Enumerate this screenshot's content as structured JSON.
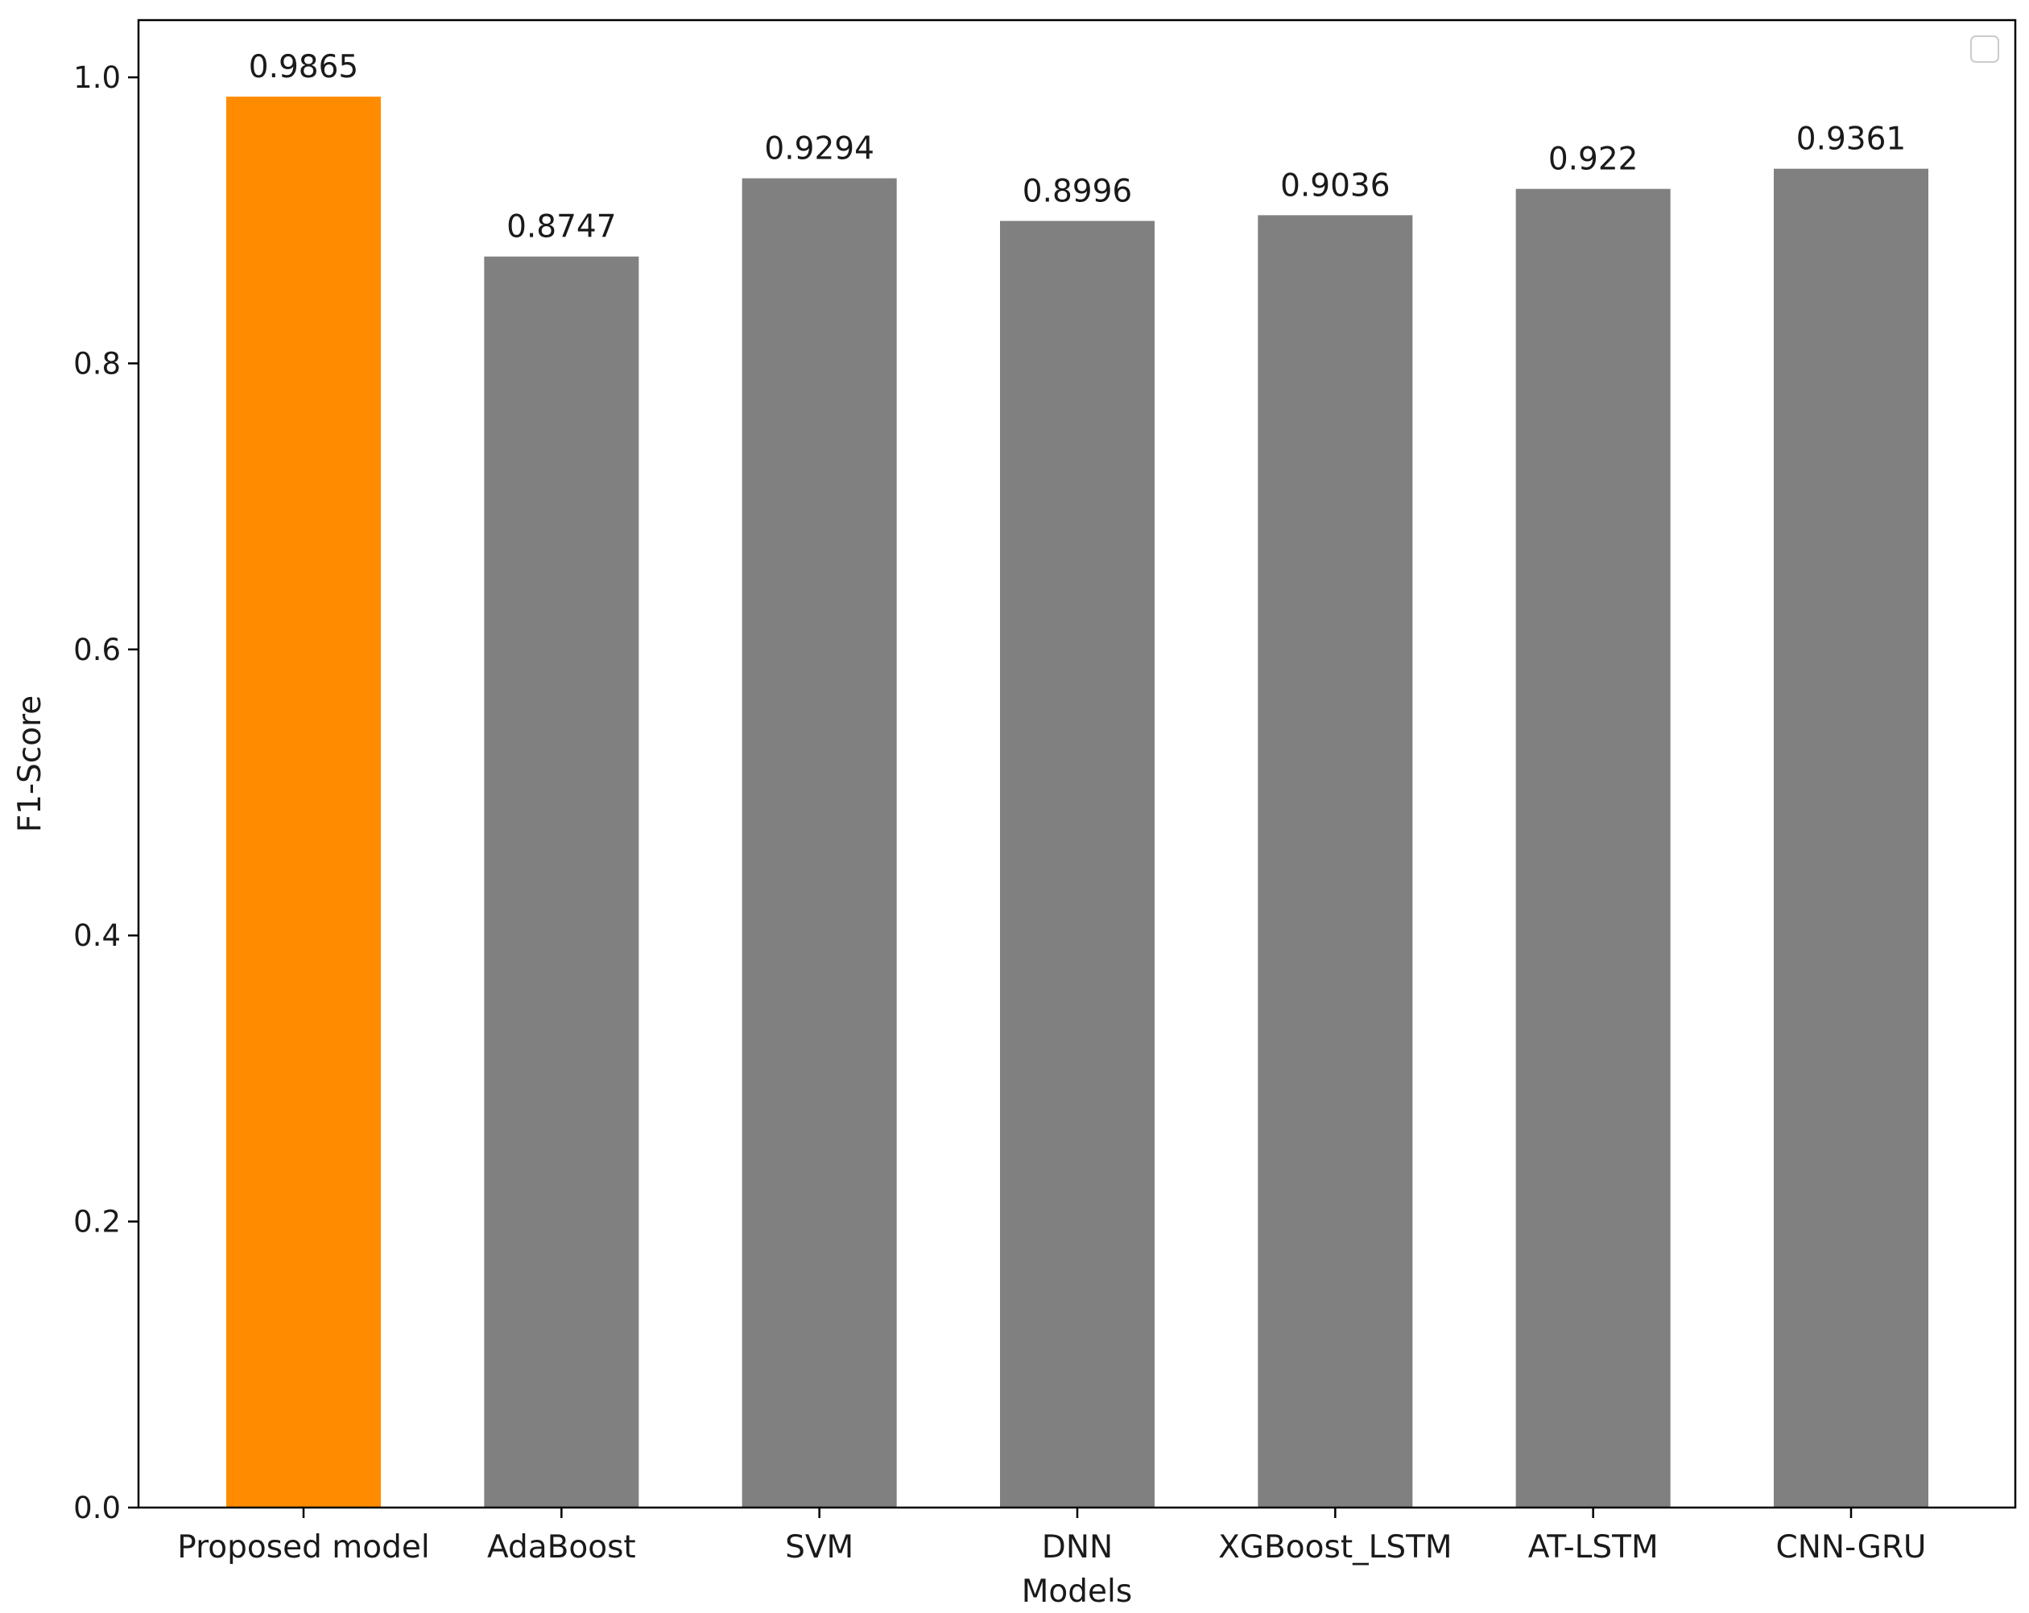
{
  "chart_data": {
    "type": "bar",
    "title": "",
    "xlabel": "Models",
    "ylabel": "F1-Score",
    "categories": [
      "Proposed model",
      "AdaBoost",
      "SVM",
      "DNN",
      "XGBoost_LSTM",
      "AT-LSTM",
      "CNN-GRU"
    ],
    "values": [
      0.9865,
      0.8747,
      0.9294,
      0.8996,
      0.9036,
      0.922,
      0.9361
    ],
    "value_labels": [
      "0.9865",
      "0.8747",
      "0.9294",
      "0.8996",
      "0.9036",
      "0.922",
      "0.9361"
    ],
    "colors": [
      "#ff8c00",
      "#808080",
      "#808080",
      "#808080",
      "#808080",
      "#808080",
      "#808080"
    ],
    "ylim": [
      0.0,
      1.04
    ],
    "yticks": [
      0.0,
      0.2,
      0.4,
      0.6,
      0.8,
      1.0
    ],
    "ytick_labels": [
      "0.0",
      "0.2",
      "0.4",
      "0.6",
      "0.8",
      "1.0"
    ],
    "grid": false,
    "legend": {
      "position": "top-right",
      "entries": []
    }
  }
}
